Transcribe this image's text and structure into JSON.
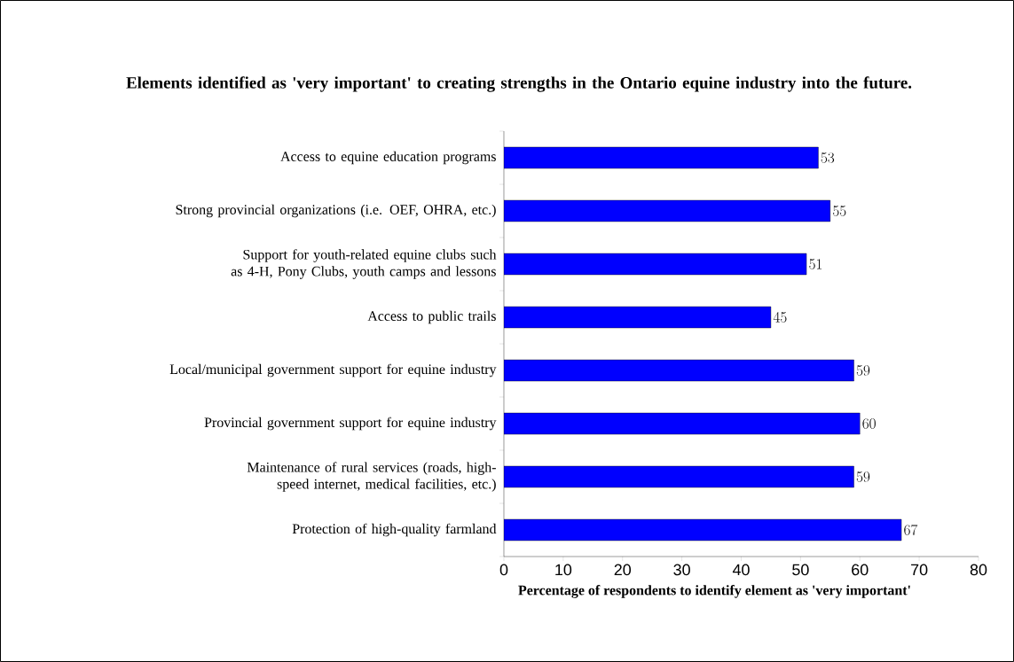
{
  "chart_data": {
    "type": "bar",
    "orientation": "horizontal",
    "title": "Elements identified as 'very important' to creating strengths in the Ontario equine industry into the future.",
    "xlabel": "Percentage of respondents to identify element as 'very important'",
    "categories": [
      "Access to equine education programs",
      "Strong provincial organizations (i.e. OEF, OHRA,  etc.)",
      "Support for youth-related equine clubs such as 4-H, Pony Clubs, youth camps and lessons",
      "Access to public trails",
      "Local/municipal government support for equine industry",
      "Provincial government support for equine industry",
      "Maintenance of rural services (roads, high-speed internet, medical facilities, etc.)",
      "Protection of high-quality farmland"
    ],
    "values": [
      53,
      55,
      51,
      45,
      59,
      60,
      59,
      67
    ],
    "color": "#0000ff",
    "data_labels": true,
    "xlim": [
      0,
      80
    ],
    "xticks": [
      0,
      10,
      20,
      30,
      40,
      50,
      60,
      70,
      80
    ],
    "grid": false
  }
}
